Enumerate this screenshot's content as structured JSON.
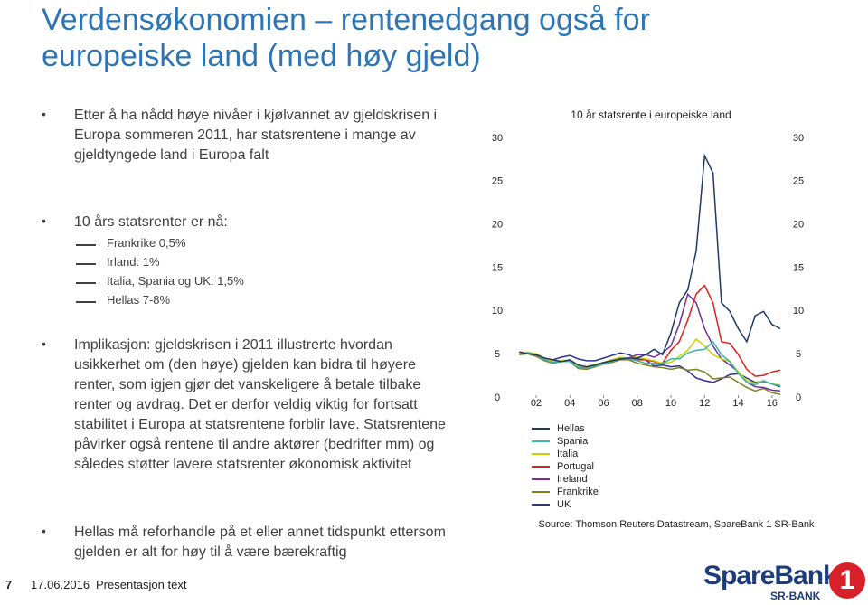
{
  "slide": {
    "title": "Verdensøkonomien – rentenedgang også for europeiske land (med høy gjeld)",
    "bullets": [
      {
        "text": "Etter å ha nådd høye nivåer i kjølvannet av gjeldskrisen i Europa sommeren 2011, har statsrentene i mange av gjeldtyngede land i Europa falt"
      },
      {
        "text": "10 års statsrenter er nå:",
        "sub": [
          "Frankrike 0,5%",
          "Irland: 1%",
          "Italia, Spania og UK: 1,5%",
          "Hellas 7-8%"
        ]
      },
      {
        "text": "Implikasjon: gjeldskrisen i 2011 illustrerte hvordan usikkerhet om (den høye) gjelden kan bidra til høyere renter, som igjen gjør det vanskeligere å betale tilbake renter og avdrag. Det er derfor veldig viktig for fortsatt stabilitet i Europa at statsrentene forblir lave. Statsrentene påvirker også rentene til andre aktører (bedrifter mm) og således støtter lavere statsrenter økonomisk aktivitet"
      },
      {
        "text": "Hellas må reforhandle på et eller annet tidspunkt ettersom gjelden er alt for høy til å være bærekraftig"
      }
    ],
    "footer": {
      "page": "7",
      "date": "17.06.2016",
      "text": "Presentasjon text"
    },
    "logo": {
      "name": "SpareBank",
      "number": "1",
      "sub": "SR-BANK"
    }
  },
  "chart_data": {
    "type": "line",
    "title": "10 år statsrente i europeiske land",
    "source": "Source: Thomson Reuters Datastream, SpareBank 1 SR-Bank",
    "x": [
      1,
      1.5,
      2,
      2.5,
      3,
      3.5,
      4,
      4.5,
      5,
      5.5,
      6,
      6.5,
      7,
      7.5,
      8,
      8.5,
      9,
      9.5,
      10,
      10.5,
      11,
      11.5,
      12,
      12.5,
      13,
      13.5,
      14,
      14.5,
      15,
      15.5,
      16,
      16.5
    ],
    "xlim": [
      0.5,
      16.6
    ],
    "xticks": [
      {
        "value": 2,
        "label": "02"
      },
      {
        "value": 4,
        "label": "04"
      },
      {
        "value": 6,
        "label": "06"
      },
      {
        "value": 8,
        "label": "08"
      },
      {
        "value": 10,
        "label": "10"
      },
      {
        "value": 12,
        "label": "12"
      },
      {
        "value": 14,
        "label": "14"
      },
      {
        "value": 16,
        "label": "16"
      }
    ],
    "ylim": [
      0,
      30
    ],
    "yticks": [
      0,
      5,
      10,
      15,
      20,
      25,
      30
    ],
    "series": [
      {
        "name": "Hellas",
        "color": "#1f3864",
        "values": [
          5.3,
          5.1,
          5.0,
          4.6,
          4.4,
          4.2,
          4.4,
          3.8,
          3.6,
          3.8,
          4.1,
          4.3,
          4.5,
          4.6,
          4.6,
          5.0,
          5.6,
          5.0,
          7.5,
          11,
          12.5,
          17,
          28,
          26,
          11,
          10,
          8,
          6.5,
          9.5,
          10,
          8.5,
          8
        ]
      },
      {
        "name": "Spania",
        "color": "#3cb8a8",
        "values": [
          5.0,
          5.2,
          5.0,
          4.4,
          4.1,
          4.2,
          4.2,
          3.5,
          3.4,
          3.7,
          3.9,
          4.2,
          4.5,
          4.5,
          4.3,
          4.0,
          4.0,
          4.0,
          4.5,
          4.5,
          5.2,
          5.5,
          5.6,
          6.5,
          5.0,
          4.2,
          2.8,
          1.8,
          1.5,
          2.0,
          1.6,
          1.4
        ]
      },
      {
        "name": "Italia",
        "color": "#c8d400",
        "values": [
          5.2,
          5.3,
          5.1,
          4.6,
          4.2,
          4.3,
          4.4,
          3.7,
          3.6,
          3.9,
          4.1,
          4.4,
          4.7,
          4.6,
          4.7,
          4.5,
          4.3,
          4.0,
          4.1,
          4.8,
          5.5,
          6.8,
          6.0,
          5.0,
          4.5,
          4.2,
          3.0,
          2.0,
          1.7,
          2.0,
          1.6,
          1.5
        ]
      },
      {
        "name": "Portugal",
        "color": "#e0201b",
        "values": [
          5.3,
          5.2,
          5.1,
          4.5,
          4.2,
          4.3,
          4.3,
          3.6,
          3.5,
          3.8,
          4.1,
          4.4,
          4.6,
          4.6,
          4.4,
          4.4,
          4.2,
          4.0,
          5.5,
          6.5,
          9,
          12,
          13,
          11,
          6.5,
          6.3,
          5.0,
          3.3,
          2.5,
          2.6,
          3.0,
          3.2
        ]
      },
      {
        "name": "Ireland",
        "color": "#7030a0",
        "values": [
          5.1,
          5.2,
          5.0,
          4.4,
          4.1,
          4.2,
          4.3,
          3.5,
          3.4,
          3.7,
          4.0,
          4.4,
          4.6,
          4.6,
          5.0,
          5.0,
          4.7,
          5.2,
          6.0,
          8.5,
          12,
          11,
          8,
          6,
          4.5,
          3.8,
          3.0,
          1.8,
          1.3,
          1.2,
          0.9,
          0.8
        ]
      },
      {
        "name": "Frankrike",
        "color": "#7f7f1f",
        "values": [
          5.0,
          5.1,
          4.8,
          4.3,
          4.0,
          4.2,
          4.2,
          3.4,
          3.3,
          3.6,
          3.9,
          4.1,
          4.4,
          4.4,
          4.0,
          3.8,
          3.6,
          3.5,
          3.3,
          3.5,
          3.2,
          3.3,
          3.0,
          2.2,
          2.3,
          2.4,
          1.8,
          1.2,
          0.8,
          1.1,
          0.6,
          0.4
        ]
      },
      {
        "name": "UK",
        "color": "#2e3192",
        "values": [
          5.0,
          5.2,
          4.9,
          4.4,
          4.4,
          4.7,
          4.9,
          4.5,
          4.3,
          4.3,
          4.6,
          4.9,
          5.2,
          5.0,
          4.5,
          4.4,
          3.7,
          3.8,
          3.6,
          3.7,
          3.1,
          2.3,
          2.0,
          1.8,
          2.2,
          2.7,
          2.8,
          2.3,
          1.8,
          1.9,
          1.6,
          1.3
        ]
      }
    ]
  }
}
